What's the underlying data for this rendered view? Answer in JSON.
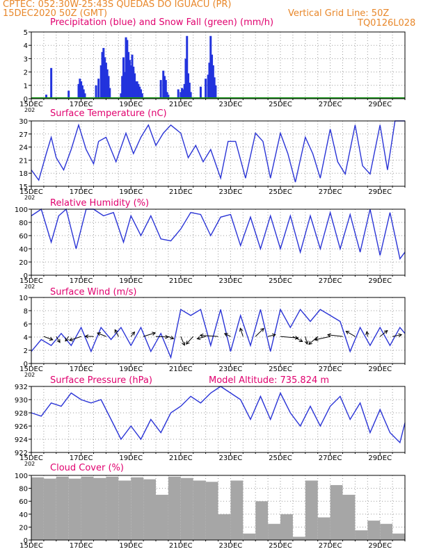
{
  "header": {
    "line1_left": "CPTEC:   052:30W-25:43S   QUEDAS DO IGUACU (PR)",
    "line2_left": "15DEC2020  50Z  (GMT)",
    "line2_right": "Vertical Grid Line: 50Z",
    "line3_right": "TQ0126L028",
    "model_altitude": "Model Altitude:  735.824  m"
  },
  "colors": {
    "header": "#e8872a",
    "title": "#e0006e",
    "line": "#2a34d6",
    "bar": "#2233dd",
    "snow": "#1a9a1a",
    "cloud": "#a6a6a6",
    "wind_arrow": "#000000"
  },
  "x_ticks": [
    "15DEC",
    "17DEC",
    "19DEC",
    "21DEC",
    "23DEC",
    "25DEC",
    "27DEC",
    "29DEC"
  ],
  "x_year_fragment": "202",
  "chart_data": [
    {
      "type": "bar",
      "title": "Precipitation (blue) and Snow Fall (green) (mm/h)",
      "ylim": [
        0,
        5
      ],
      "yticks": [
        "0",
        "1",
        "2",
        "3",
        "4",
        "5"
      ],
      "x_days": [
        0.6,
        0.8,
        1.5,
        1.9,
        1.95,
        2.0,
        2.05,
        2.1,
        2.15,
        2.6,
        2.7,
        2.8,
        2.85,
        2.9,
        2.95,
        3.0,
        3.05,
        3.1,
        3.15,
        3.6,
        3.65,
        3.7,
        3.75,
        3.8,
        3.85,
        3.9,
        3.95,
        4.0,
        4.05,
        4.1,
        4.15,
        4.2,
        4.25,
        4.3,
        4.35,
        4.4,
        4.45,
        5.2,
        5.3,
        5.35,
        5.4,
        5.45,
        5.5,
        5.9,
        6.0,
        6.05,
        6.1,
        6.15,
        6.2,
        6.25,
        6.3,
        6.35,
        6.4,
        6.8,
        7.0,
        7.1,
        7.15,
        7.2,
        7.25,
        7.3,
        7.35,
        7.4
      ],
      "values": [
        0.3,
        2.3,
        0.6,
        1.1,
        1.5,
        1.3,
        1.0,
        0.7,
        0.4,
        1.0,
        1.5,
        2.5,
        3.5,
        3.8,
        3.1,
        2.7,
        2.2,
        1.7,
        0.8,
        0.4,
        1.7,
        3.1,
        2.0,
        4.6,
        4.4,
        3.5,
        2.9,
        2.5,
        3.3,
        2.4,
        1.9,
        1.3,
        1.3,
        1.1,
        0.9,
        0.7,
        0.4,
        1.4,
        2.1,
        1.7,
        1.4,
        0.5,
        0.3,
        0.7,
        0.5,
        0.8,
        0.7,
        1.1,
        3.0,
        4.7,
        1.9,
        1.2,
        0.5,
        0.9,
        1.5,
        1.8,
        2.7,
        4.7,
        3.3,
        2.5,
        1.6,
        1.0
      ],
      "snow": "trace near 0"
    },
    {
      "type": "line",
      "title": "Surface Temperature (nC)",
      "ylim": [
        14,
        30
      ],
      "yticks": [
        "15",
        "18",
        "21",
        "24",
        "27",
        "30"
      ],
      "x": [
        0,
        0.3,
        0.6,
        0.8,
        1.0,
        1.3,
        1.6,
        1.9,
        2.2,
        2.5,
        2.7,
        3.0,
        3.4,
        3.8,
        4.1,
        4.4,
        4.7,
        5.0,
        5.3,
        5.6,
        6.0,
        6.3,
        6.6,
        6.9,
        7.2,
        7.6,
        7.9,
        8.2,
        8.6,
        9.0,
        9.3,
        9.6,
        10.0,
        10.3,
        10.6,
        11.0,
        11.3,
        11.6,
        12.0,
        12.3,
        12.6,
        13.0,
        13.3,
        13.6,
        14.0,
        14.3,
        14.6,
        15.0
      ],
      "values": [
        18,
        15.5,
        22,
        26,
        21,
        18,
        23,
        29,
        23,
        19.5,
        25,
        26,
        20,
        27,
        22,
        26,
        29,
        24,
        27,
        29,
        27,
        21,
        24,
        20,
        23,
        16,
        25,
        25,
        16,
        27,
        25,
        16,
        27,
        22,
        15,
        26,
        22,
        16,
        28,
        20,
        17,
        29,
        19,
        17,
        29,
        18,
        30,
        30
      ]
    },
    {
      "type": "line",
      "title": "Relative Humidity (%)",
      "ylim": [
        0,
        100
      ],
      "yticks": [
        "0",
        "20",
        "40",
        "60",
        "80",
        "100"
      ],
      "x": [
        0,
        0.4,
        0.8,
        1.1,
        1.4,
        1.8,
        2.2,
        2.5,
        2.9,
        3.3,
        3.7,
        4.0,
        4.4,
        4.8,
        5.2,
        5.6,
        6.0,
        6.4,
        6.8,
        7.2,
        7.6,
        8.0,
        8.4,
        8.8,
        9.2,
        9.6,
        10.0,
        10.4,
        10.8,
        11.2,
        11.6,
        12.0,
        12.4,
        12.8,
        13.2,
        13.6,
        14.0,
        14.4,
        14.8,
        15.0
      ],
      "values": [
        90,
        100,
        50,
        90,
        100,
        40,
        100,
        100,
        90,
        95,
        50,
        90,
        60,
        90,
        55,
        52,
        70,
        95,
        92,
        60,
        88,
        92,
        45,
        88,
        40,
        90,
        40,
        90,
        35,
        90,
        40,
        95,
        40,
        92,
        35,
        100,
        30,
        95,
        25,
        35
      ]
    },
    {
      "type": "line",
      "title": "Surface Wind (m/s)",
      "ylim": [
        0,
        11
      ],
      "yticks": [
        "0",
        "2",
        "4",
        "6",
        "8",
        "10"
      ],
      "x": [
        0,
        0.4,
        0.8,
        1.2,
        1.6,
        2.0,
        2.4,
        2.8,
        3.2,
        3.6,
        4.0,
        4.4,
        4.8,
        5.2,
        5.6,
        6.0,
        6.4,
        6.8,
        7.2,
        7.6,
        8.0,
        8.4,
        8.8,
        9.2,
        9.6,
        10.0,
        10.4,
        10.8,
        11.2,
        11.6,
        12.0,
        12.4,
        12.8,
        13.2,
        13.6,
        14.0,
        14.4,
        14.8,
        15.0
      ],
      "values": [
        2,
        4,
        3,
        5,
        3,
        6,
        2,
        6,
        4,
        6,
        3,
        6,
        2,
        5,
        1,
        9,
        8,
        9,
        3,
        9,
        2,
        8,
        3,
        9,
        2,
        9,
        6,
        9,
        7,
        9,
        8,
        7,
        2,
        6,
        3,
        6,
        3,
        6,
        5
      ],
      "arrows": "black direction vectors every ~6 h"
    },
    {
      "type": "line",
      "title": "Surface Pressure (hPa)",
      "ylim": [
        922,
        932
      ],
      "yticks": [
        "922",
        "924",
        "926",
        "928",
        "930",
        "932"
      ],
      "x": [
        0,
        0.4,
        0.8,
        1.2,
        1.6,
        2.0,
        2.4,
        2.8,
        3.2,
        3.6,
        4.0,
        4.4,
        4.8,
        5.2,
        5.6,
        6.0,
        6.4,
        6.8,
        7.2,
        7.6,
        8.0,
        8.4,
        8.8,
        9.2,
        9.6,
        10.0,
        10.4,
        10.8,
        11.2,
        11.6,
        12.0,
        12.4,
        12.8,
        13.2,
        13.6,
        14.0,
        14.4,
        14.8,
        15.0
      ],
      "values": [
        928,
        927.5,
        929.5,
        929,
        931,
        930,
        929.5,
        930,
        927,
        924,
        926,
        924,
        927,
        925,
        928,
        929,
        930.5,
        929.5,
        931,
        932,
        931,
        930,
        927,
        930.5,
        927,
        931,
        928,
        926,
        929,
        926,
        929,
        930.5,
        927,
        929.5,
        925,
        928.5,
        925,
        923.5,
        926.5
      ]
    },
    {
      "type": "bar",
      "title": "Cloud Cover (%)",
      "ylim": [
        0,
        100
      ],
      "yticks": [
        "0",
        "20",
        "40",
        "60",
        "80",
        "100"
      ],
      "x_days": [
        0,
        0.5,
        1.0,
        1.5,
        2.0,
        2.5,
        3.0,
        3.5,
        4.0,
        4.5,
        5.0,
        5.5,
        6.0,
        6.5,
        7.0,
        7.5,
        8.0,
        8.5,
        9.0,
        9.5,
        10.0,
        10.5,
        11.0,
        11.5,
        12.0,
        12.5,
        13.0,
        13.5,
        14.0,
        14.5
      ],
      "values": [
        97,
        95,
        98,
        95,
        98,
        96,
        98,
        92,
        97,
        94,
        70,
        98,
        96,
        92,
        90,
        40,
        92,
        10,
        60,
        25,
        40,
        5,
        92,
        35,
        85,
        70,
        15,
        30,
        25,
        10
      ]
    }
  ]
}
